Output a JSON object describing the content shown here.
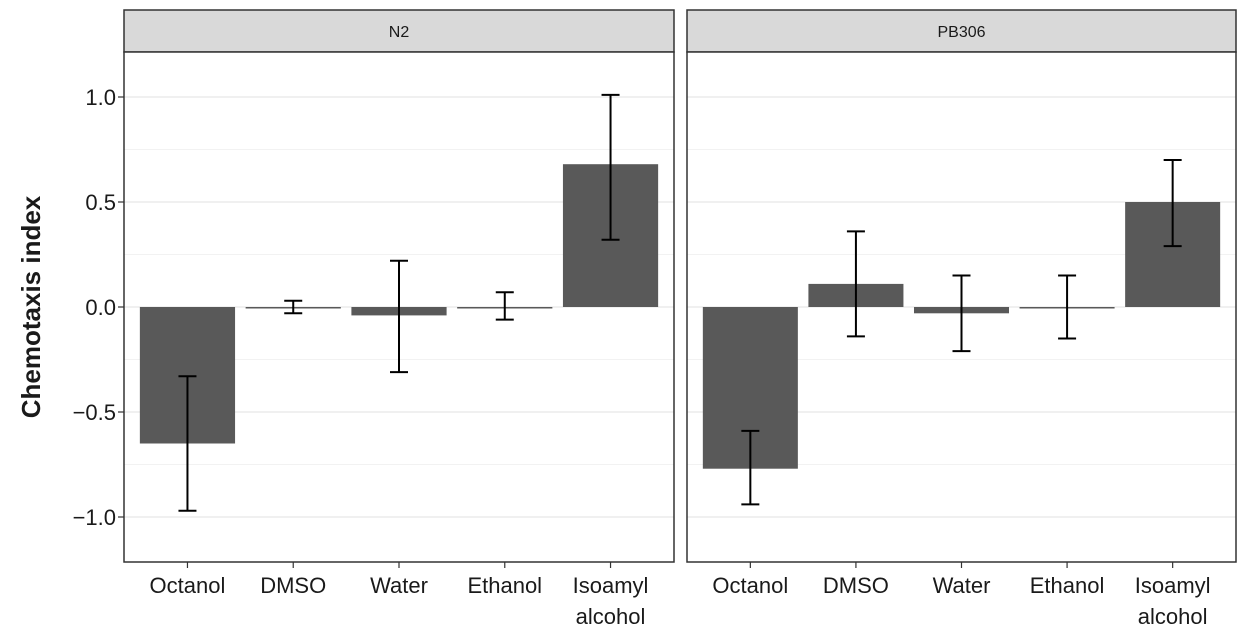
{
  "chart_data": {
    "type": "bar",
    "ylabel": "Chemotaxis index",
    "xlabel": "",
    "ylim": [
      -1.2,
      1.25
    ],
    "yticks": [
      -1.0,
      -0.5,
      0.0,
      0.5,
      1.0
    ],
    "ytick_labels": [
      "−1.0",
      "−0.5",
      "0.0",
      "0.5",
      "1.0"
    ],
    "grid": true,
    "categories": [
      "Octanol",
      "DMSO",
      "Water",
      "Ethanol",
      "Isoamyl alcohol"
    ],
    "category_labels": [
      [
        "Octanol"
      ],
      [
        "DMSO"
      ],
      [
        "Water"
      ],
      [
        "Ethanol"
      ],
      [
        "Isoamyl",
        "alcohol"
      ]
    ],
    "panels": [
      {
        "strip": "N2",
        "values": [
          -0.65,
          0.0,
          -0.04,
          0.0,
          0.68
        ],
        "error_low": [
          -0.97,
          -0.03,
          -0.31,
          -0.06,
          0.32
        ],
        "error_high": [
          -0.33,
          0.03,
          0.22,
          0.07,
          1.01
        ]
      },
      {
        "strip": "PB306",
        "values": [
          -0.77,
          0.11,
          -0.03,
          0.0,
          0.5
        ],
        "error_low": [
          -0.94,
          -0.14,
          -0.21,
          -0.15,
          0.29
        ],
        "error_high": [
          -0.59,
          0.36,
          0.15,
          0.15,
          0.7
        ]
      }
    ],
    "colors": {
      "bar": "#595959",
      "strip_fill": "#d9d9d9",
      "panel_border": "#333333",
      "grid": "#ebebeb",
      "text": "#1a1a1a"
    }
  }
}
